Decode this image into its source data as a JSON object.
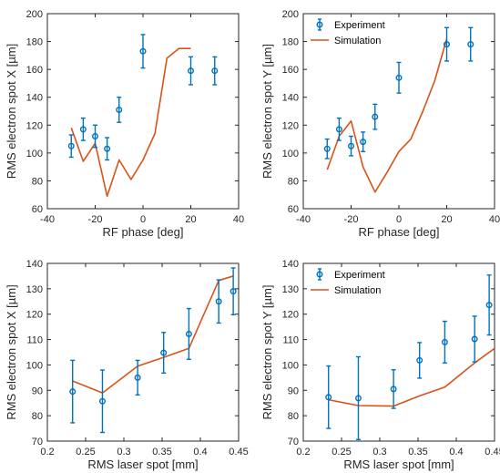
{
  "colors": {
    "experiment": "#0072BD",
    "simulation": "#D95319",
    "axis": "#262626"
  },
  "chart_data": [
    {
      "type": "scatter",
      "xlabel": "RF phase [deg]",
      "ylabel": "RMS electron spot X [µm]",
      "xlim": [
        -40,
        40
      ],
      "ylim": [
        60,
        200
      ],
      "xticks": [
        "-40",
        "-20",
        "0",
        "20",
        "40"
      ],
      "yticks": [
        "60",
        "80",
        "100",
        "120",
        "140",
        "160",
        "180",
        "200"
      ],
      "grid": false,
      "legend": null,
      "series": [
        {
          "kind": "errorbar",
          "x": [
            -30,
            -25,
            -20,
            -15,
            -10,
            0,
            20,
            30
          ],
          "y": [
            105,
            117,
            112,
            103,
            131,
            173,
            159,
            159
          ],
          "err": [
            8,
            8,
            8,
            8,
            9,
            12,
            10,
            10
          ]
        },
        {
          "kind": "line",
          "x": [
            -30,
            -25,
            -20,
            -15,
            -10,
            -5,
            0,
            5,
            10,
            15,
            20
          ],
          "y": [
            118,
            94,
            107,
            69,
            95,
            81,
            95,
            114,
            168,
            175,
            175
          ]
        }
      ]
    },
    {
      "type": "scatter",
      "xlabel": "RF phase [deg]",
      "ylabel": "RMS electron spot Y [µm]",
      "xlim": [
        -40,
        40
      ],
      "ylim": [
        60,
        200
      ],
      "xticks": [
        "-40",
        "-20",
        "0",
        "20",
        "40"
      ],
      "yticks": [
        "60",
        "80",
        "100",
        "120",
        "140",
        "160",
        "180",
        "200"
      ],
      "grid": false,
      "legend": "top-left",
      "series": [
        {
          "kind": "errorbar",
          "name": "Experiment",
          "x": [
            -30,
            -25,
            -20,
            -15,
            -10,
            0,
            20,
            30
          ],
          "y": [
            103,
            117,
            105,
            108,
            126,
            154,
            178,
            178
          ],
          "err": [
            7,
            8,
            7,
            7,
            9,
            11,
            12,
            12
          ]
        },
        {
          "kind": "line",
          "name": "Simulation",
          "x": [
            -30,
            -25,
            -20,
            -15,
            -10,
            -5,
            0,
            5,
            10,
            15,
            20
          ],
          "y": [
            88,
            112,
            123,
            90,
            72,
            86,
            101,
            110,
            130,
            152,
            182
          ]
        }
      ]
    },
    {
      "type": "scatter",
      "xlabel": "RMS laser spot [mm]",
      "ylabel": "RMS electron spot X [µm]",
      "xlim": [
        0.2,
        0.45
      ],
      "ylim": [
        70,
        140
      ],
      "xticks": [
        "0.2",
        "0.25",
        "0.3",
        "0.35",
        "0.4",
        "0.45"
      ],
      "yticks": [
        "70",
        "80",
        "90",
        "100",
        "110",
        "120",
        "130",
        "140"
      ],
      "grid": false,
      "legend": null,
      "series": [
        {
          "kind": "errorbar",
          "x": [
            0.233,
            0.272,
            0.318,
            0.352,
            0.385,
            0.424,
            0.443
          ],
          "y": [
            89.5,
            85.7,
            95,
            104.8,
            112.2,
            125,
            129
          ],
          "err": [
            12.3,
            12.3,
            6.8,
            8,
            10,
            8.5,
            9.2
          ]
        },
        {
          "kind": "line",
          "x": [
            0.233,
            0.272,
            0.318,
            0.352,
            0.385,
            0.424,
            0.443
          ],
          "y": [
            93.7,
            89,
            99.5,
            103,
            106.5,
            133.3,
            135
          ]
        }
      ]
    },
    {
      "type": "scatter",
      "xlabel": "RMS laser spot [mm]",
      "ylabel": "RMS electron spot Y [µm]",
      "xlim": [
        0.2,
        0.45
      ],
      "ylim": [
        70,
        140
      ],
      "xticks": [
        "0.2",
        "0.25",
        "0.3",
        "0.35",
        "0.4",
        "0.45"
      ],
      "yticks": [
        "70",
        "80",
        "90",
        "100",
        "110",
        "120",
        "130",
        "140"
      ],
      "grid": false,
      "legend": "top-left",
      "series": [
        {
          "kind": "errorbar",
          "name": "Experiment",
          "x": [
            0.233,
            0.272,
            0.318,
            0.352,
            0.385,
            0.424,
            0.443
          ],
          "y": [
            87.3,
            86.9,
            90.5,
            101.8,
            109,
            110.2,
            123.6
          ],
          "err": [
            12.3,
            16.3,
            7.6,
            7,
            8.2,
            9,
            11.8
          ]
        },
        {
          "kind": "line",
          "name": "Simulation",
          "x": [
            0.233,
            0.272,
            0.318,
            0.352,
            0.385,
            0.424,
            0.45
          ],
          "y": [
            86.3,
            84,
            83.8,
            87.8,
            91.3,
            100.8,
            106.5
          ]
        }
      ]
    }
  ]
}
